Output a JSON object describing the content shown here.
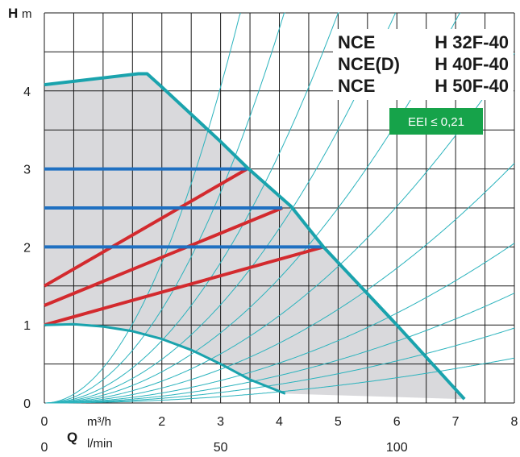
{
  "chart_data": {
    "type": "line",
    "xlabel": "Q",
    "x_unit": "m³/h",
    "ylabel": "H",
    "y_unit": "m",
    "x_secondary_unit": "l/min",
    "xlim": [
      0,
      8
    ],
    "ylim": [
      0,
      5
    ],
    "x_ticks": [
      "0",
      "2",
      "3",
      "4",
      "5",
      "6",
      "7",
      "8"
    ],
    "x_tick_values": [
      0,
      2,
      3,
      4,
      5,
      6,
      7,
      8
    ],
    "x_secondary_ticks": [
      "0",
      "50",
      "100"
    ],
    "x_secondary_values": [
      0,
      50,
      100
    ],
    "y_ticks": [
      "0",
      "1",
      "2",
      "3",
      "4"
    ],
    "y_tick_values": [
      0,
      1,
      2,
      3,
      4
    ],
    "model_lines": [
      {
        "name": "NCE",
        "code": "H 32F-40"
      },
      {
        "name": "NCE(D)",
        "code": "H 40F-40"
      },
      {
        "name": "NCE",
        "code": "H 50F-40"
      }
    ],
    "badge": "EEI ≤ 0,21",
    "colors": {
      "envelope": "#1aa3ad",
      "constant_pressure": "#1f70c1",
      "proportional_pressure": "#d32a2e",
      "system_curves": "#2bb3bd",
      "area_fill": "#d9d9dc",
      "badge": "#16a34a",
      "grid": "#1a1a1a"
    },
    "envelope_max": {
      "x": [
        0,
        1.6,
        1.75,
        2.0,
        3.0,
        3.45,
        4.2,
        4.75,
        6.0,
        7.15
      ],
      "y": [
        4.08,
        4.22,
        4.22,
        4.05,
        3.35,
        3.02,
        2.52,
        2.0,
        1.0,
        0.05
      ]
    },
    "envelope_min": {
      "x": [
        0,
        0.5,
        1.0,
        1.5,
        2.0,
        2.5,
        3.0,
        3.5,
        4.1
      ],
      "y": [
        1.0,
        1.01,
        0.98,
        0.92,
        0.82,
        0.68,
        0.5,
        0.3,
        0.12
      ]
    },
    "constant_pressure": [
      {
        "y": 3.0,
        "x_end": 3.45
      },
      {
        "y": 2.5,
        "x_end": 4.05
      },
      {
        "y": 2.0,
        "x_end": 4.75
      }
    ],
    "proportional_pressure": [
      {
        "x": [
          0,
          3.45
        ],
        "y": [
          1.5,
          3.0
        ]
      },
      {
        "x": [
          0,
          4.05
        ],
        "y": [
          1.25,
          2.5
        ]
      },
      {
        "x": [
          0,
          4.75
        ],
        "y": [
          1.0,
          2.0
        ]
      }
    ],
    "system_curve_k": [
      0.45,
      0.3,
      0.2,
      0.14,
      0.1,
      0.07,
      0.048,
      0.032,
      0.022,
      0.015,
      0.009
    ],
    "shaded_region": {
      "x": [
        0,
        1.6,
        1.75,
        2.0,
        3.0,
        3.45,
        4.2,
        4.75,
        6.0,
        7.15,
        4.1,
        3.5,
        3.0,
        2.5,
        2.0,
        1.5,
        1.0,
        0.5,
        0
      ],
      "y": [
        4.08,
        4.22,
        4.22,
        4.05,
        3.35,
        3.02,
        2.52,
        2.0,
        1.0,
        0.05,
        0.12,
        0.3,
        0.5,
        0.68,
        0.82,
        0.92,
        0.98,
        1.01,
        1.0
      ]
    }
  }
}
